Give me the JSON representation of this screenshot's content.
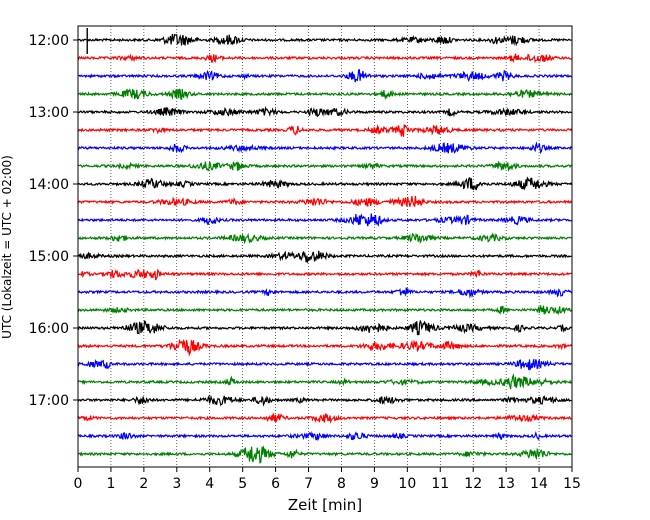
{
  "chart_data": {
    "type": "line",
    "title": "",
    "xlabel": "Zeit  [min]",
    "ylabel": "UTC (Lokalzeit = UTC + 02:00)",
    "xlim": [
      0,
      15
    ],
    "x_ticks": [
      0,
      1,
      2,
      3,
      4,
      5,
      6,
      7,
      8,
      9,
      10,
      11,
      12,
      13,
      14,
      15
    ],
    "x_tick_labels": [
      "0",
      "1",
      "2",
      "3",
      "4",
      "5",
      "6",
      "7",
      "8",
      "9",
      "10",
      "11",
      "12",
      "13",
      "14",
      "15"
    ],
    "y_tick_labels": [
      "12:00",
      "13:00",
      "14:00",
      "15:00",
      "16:00",
      "17:00"
    ],
    "y_ticks_trace_index": [
      0,
      4,
      8,
      12,
      16,
      20
    ],
    "start_time": "12:00",
    "interval_minutes": 15,
    "trace_count": 24,
    "trace_colors": [
      "#000000",
      "#ff0000",
      "#0000ff",
      "#008000"
    ],
    "grid_x": true,
    "grid_style": "dotted"
  }
}
